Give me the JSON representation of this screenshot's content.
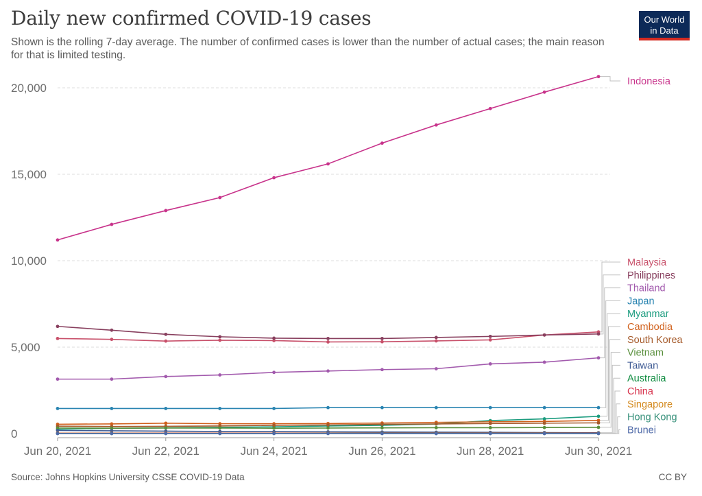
{
  "header": {
    "title": "Daily new confirmed COVID-19 cases",
    "subtitle": "Shown is the rolling 7-day average. The number of confirmed cases is lower than the number of actual cases; the main reason for that is limited testing.",
    "logo_line1": "Our World",
    "logo_line2": "in Data"
  },
  "footer": {
    "source": "Source: Johns Hopkins University CSSE COVID-19 Data",
    "license": "CC BY"
  },
  "chart_data": {
    "type": "line",
    "title": "Daily new confirmed COVID-19 cases",
    "xlabel": "",
    "ylabel": "",
    "x": [
      "Jun 20, 2021",
      "Jun 21, 2021",
      "Jun 22, 2021",
      "Jun 23, 2021",
      "Jun 24, 2021",
      "Jun 25, 2021",
      "Jun 26, 2021",
      "Jun 27, 2021",
      "Jun 28, 2021",
      "Jun 29, 2021",
      "Jun 30, 2021"
    ],
    "x_tick_labels": [
      "Jun 20, 2021",
      "Jun 22, 2021",
      "Jun 24, 2021",
      "Jun 26, 2021",
      "Jun 28, 2021",
      "Jun 30, 2021"
    ],
    "y_ticks": [
      0,
      5000,
      10000,
      15000,
      20000
    ],
    "y_tick_labels": [
      "0",
      "5,000",
      "10,000",
      "15,000",
      "20,000"
    ],
    "ylim": [
      0,
      20000
    ],
    "grid": true,
    "legend": "right-end labels",
    "series": [
      {
        "name": "Indonesia",
        "color": "#c8338b",
        "values": [
          11200,
          12100,
          12900,
          13650,
          14800,
          15600,
          16800,
          17850,
          18800,
          19750,
          20650
        ]
      },
      {
        "name": "Malaysia",
        "color": "#c8506a",
        "values": [
          5500,
          5450,
          5350,
          5400,
          5380,
          5300,
          5310,
          5360,
          5420,
          5700,
          5880
        ]
      },
      {
        "name": "Philippines",
        "color": "#883f5e",
        "values": [
          6200,
          5980,
          5740,
          5600,
          5520,
          5500,
          5500,
          5560,
          5620,
          5700,
          5760
        ]
      },
      {
        "name": "Thailand",
        "color": "#a25aad",
        "values": [
          3150,
          3150,
          3300,
          3390,
          3540,
          3620,
          3700,
          3750,
          4030,
          4130,
          4380
        ]
      },
      {
        "name": "Japan",
        "color": "#2984b1",
        "values": [
          1450,
          1450,
          1450,
          1450,
          1450,
          1500,
          1500,
          1500,
          1500,
          1500,
          1500
        ]
      },
      {
        "name": "Myanmar",
        "color": "#1c9c7f",
        "values": [
          250,
          300,
          330,
          360,
          390,
          440,
          480,
          550,
          750,
          850,
          1000
        ]
      },
      {
        "name": "Cambodia",
        "color": "#d05f1a",
        "values": [
          540,
          560,
          600,
          570,
          570,
          580,
          610,
          650,
          680,
          700,
          760
        ]
      },
      {
        "name": "South Korea",
        "color": "#a55a2b",
        "values": [
          430,
          410,
          420,
          440,
          480,
          500,
          540,
          560,
          580,
          600,
          620
        ]
      },
      {
        "name": "Vietnam",
        "color": "#598f3c",
        "values": [
          320,
          310,
          320,
          320,
          310,
          320,
          330,
          340,
          340,
          350,
          360
        ]
      },
      {
        "name": "Taiwan",
        "color": "#3e5a93",
        "values": [
          180,
          160,
          140,
          120,
          110,
          100,
          90,
          80,
          70,
          60,
          50
        ]
      },
      {
        "name": "Australia",
        "color": "#0b8a3d",
        "values": [
          15,
          15,
          18,
          20,
          22,
          25,
          30,
          30,
          28,
          26,
          25
        ]
      },
      {
        "name": "China",
        "color": "#d7324c",
        "values": [
          25,
          25,
          30,
          28,
          26,
          25,
          24,
          24,
          24,
          24,
          24
        ]
      },
      {
        "name": "Singapore",
        "color": "#d48a1e",
        "values": [
          20,
          20,
          18,
          18,
          17,
          17,
          17,
          16,
          16,
          16,
          15
        ]
      },
      {
        "name": "Hong Kong",
        "color": "#36907a",
        "values": [
          3,
          3,
          3,
          3,
          3,
          3,
          3,
          3,
          3,
          3,
          3
        ]
      },
      {
        "name": "Brunei",
        "color": "#4f6aa8",
        "values": [
          1,
          1,
          1,
          1,
          1,
          1,
          1,
          1,
          1,
          1,
          1
        ]
      }
    ]
  }
}
